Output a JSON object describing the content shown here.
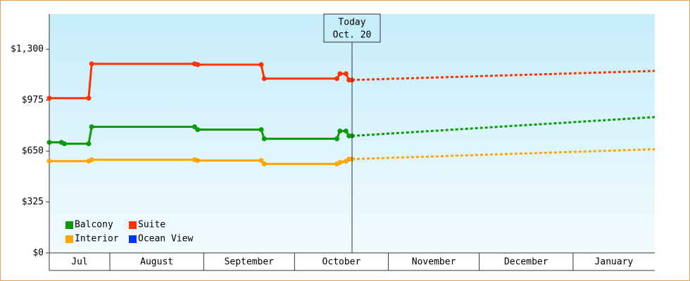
{
  "chart_data": {
    "type": "line",
    "xlim": [
      0,
      200
    ],
    "ylim": [
      0,
      1525
    ],
    "yticks": [
      {
        "value": 0,
        "label": "$0"
      },
      {
        "value": 325,
        "label": "$325"
      },
      {
        "value": 650,
        "label": "$650"
      },
      {
        "value": 975,
        "label": "$975"
      },
      {
        "value": 1300,
        "label": "$1,300"
      }
    ],
    "xticks": [
      20,
      51,
      81,
      112,
      142,
      173
    ],
    "categories": [
      "Jul",
      "August",
      "September",
      "October",
      "November",
      "December",
      "January"
    ],
    "annotation": {
      "x": 100,
      "lines": [
        "Today",
        "Oct. 20"
      ]
    },
    "legend": "lower left",
    "series": [
      {
        "name": "Balcony",
        "color": "#0a9a0a",
        "x": [
          0,
          4,
          5,
          13,
          14,
          48,
          49,
          70,
          71,
          95,
          96,
          98,
          99,
          100
        ],
        "values": [
          706,
          706,
          697,
          697,
          805,
          805,
          787,
          787,
          729,
          729,
          778,
          778,
          747,
          747
        ],
        "forecast": {
          "x": [
            100,
            200
          ],
          "values": [
            747,
            867
          ]
        }
      },
      {
        "name": "Suite",
        "color": "#ff3300",
        "x": [
          0,
          13,
          14,
          48,
          49,
          70,
          71,
          95,
          96,
          98,
          99,
          100
        ],
        "values": [
          988,
          988,
          1207,
          1207,
          1202,
          1202,
          1113,
          1113,
          1144,
          1144,
          1104,
          1104
        ],
        "forecast": {
          "x": [
            100,
            200
          ],
          "values": [
            1104,
            1162
          ]
        }
      },
      {
        "name": "Interior",
        "color": "#ffa500",
        "x": [
          0,
          13,
          14,
          48,
          49,
          70,
          71,
          95,
          96,
          98,
          99,
          100
        ],
        "values": [
          586,
          586,
          595,
          595,
          590,
          590,
          568,
          568,
          577,
          586,
          599,
          599
        ],
        "forecast": {
          "x": [
            100,
            200
          ],
          "values": [
            599,
            662
          ]
        }
      },
      {
        "name": "Ocean View",
        "color": "#0033ff",
        "x": [],
        "values": [],
        "forecast": {
          "x": [],
          "values": []
        }
      }
    ]
  }
}
